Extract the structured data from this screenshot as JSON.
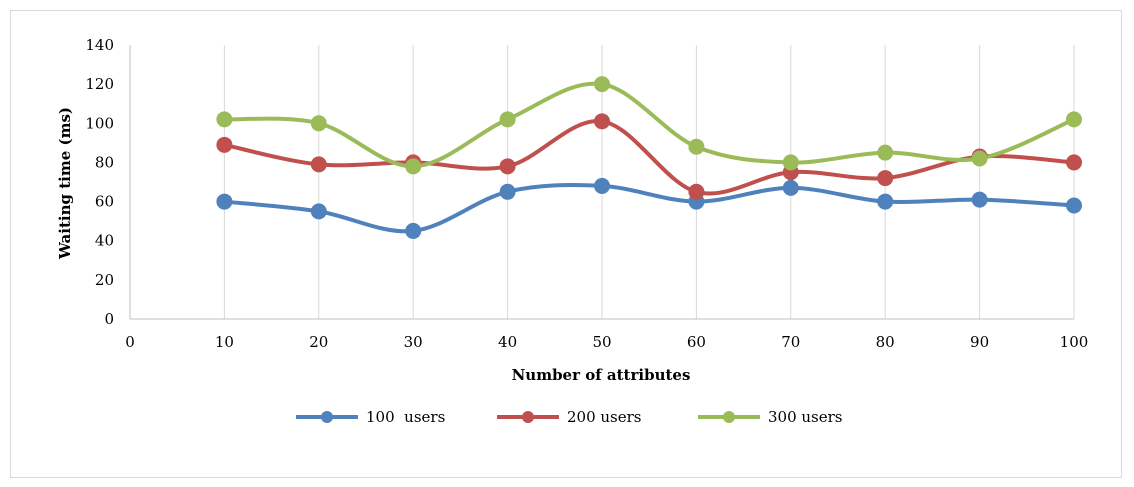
{
  "chart_data": {
    "type": "line",
    "smooth": true,
    "xlabel": "Number of attributes",
    "ylabel": "Waiting time (ms)",
    "x": [
      10,
      20,
      30,
      40,
      50,
      60,
      70,
      80,
      90,
      100
    ],
    "x_ticks": [
      0,
      10,
      20,
      30,
      40,
      50,
      60,
      70,
      80,
      90,
      100
    ],
    "y_ticks": [
      0,
      20,
      40,
      60,
      80,
      100,
      120,
      140
    ],
    "xlim": [
      0,
      100
    ],
    "ylim": [
      0,
      140
    ],
    "grid": "vertical",
    "legend_position": "bottom",
    "series": [
      {
        "name": "100  users",
        "color": "#4f81bd",
        "values": [
          60,
          55,
          45,
          65,
          68,
          60,
          67,
          60,
          61,
          58
        ]
      },
      {
        "name": "200 users",
        "color": "#c0504d",
        "values": [
          89,
          79,
          80,
          78,
          101,
          65,
          75,
          72,
          83,
          80
        ]
      },
      {
        "name": "300 users",
        "color": "#9bbb59",
        "values": [
          102,
          100,
          78,
          102,
          120,
          88,
          80,
          85,
          82,
          102
        ]
      }
    ]
  }
}
